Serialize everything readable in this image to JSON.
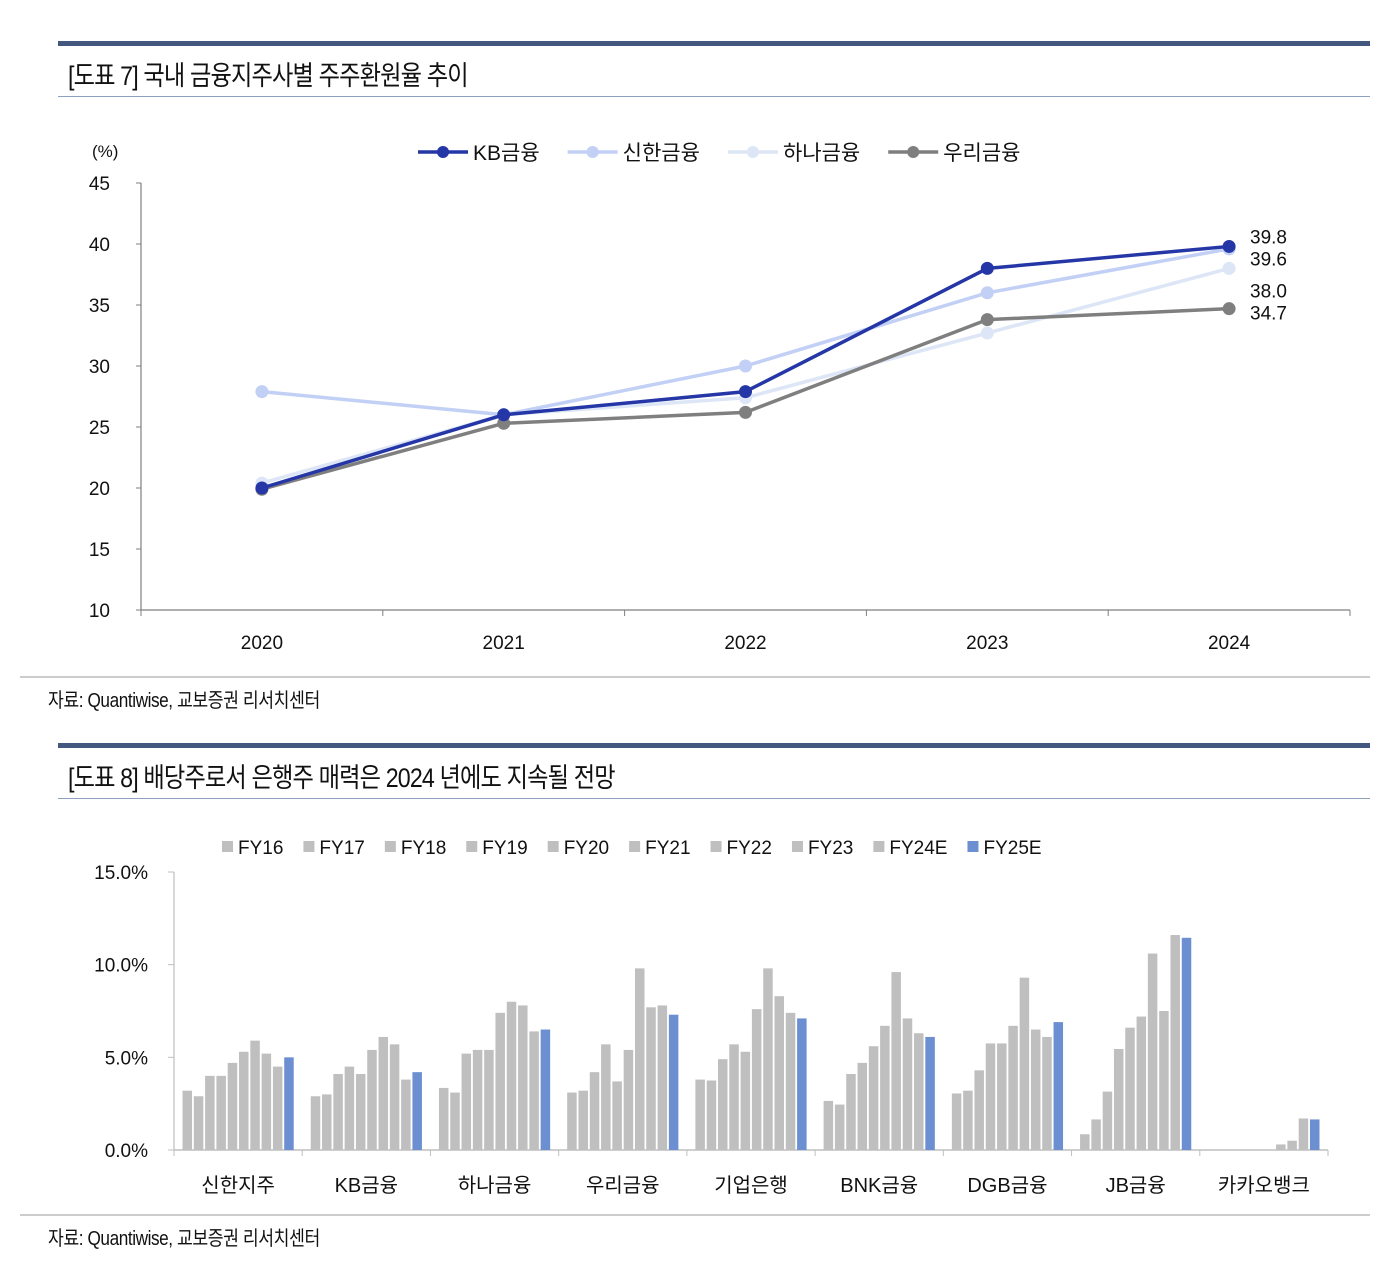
{
  "sections": [
    {
      "title": "[도표 7] 국내 금융지주사별 주주환원율 추이",
      "source": "자료: Quantiwise, 교보증권 리서치센터"
    },
    {
      "title": "[도표 8] 배당주로서 은행주 매력은 2024 년에도 지속될 전망",
      "source": "자료: Quantiwise, 교보증권 리서치센터"
    }
  ],
  "colors": {
    "section_bar": "#44587f",
    "kb": "#2536a6",
    "shinhan": "#c2d0f5",
    "hana": "#dde6f6",
    "woori": "#7f7f7f",
    "bar_gray": "#bfbfbf",
    "bar_blue": "#6b8fd0"
  },
  "chart_data": [
    {
      "type": "line",
      "title": "[도표 7] 국내 금융지주사별 주주환원율 추이",
      "ylabel": "(%)",
      "xlabel": "",
      "ylim": [
        10,
        45
      ],
      "yticks": [
        "10",
        "15",
        "20",
        "25",
        "30",
        "35",
        "40",
        "45"
      ],
      "categories": [
        "2020",
        "2021",
        "2022",
        "2023",
        "2024"
      ],
      "legend_position": "top",
      "grid": false,
      "series": [
        {
          "name": "KB금융",
          "key": "kb",
          "values": [
            20.0,
            26.0,
            27.9,
            38.0,
            39.8
          ],
          "end_label": "39.8"
        },
        {
          "name": "신한금융",
          "key": "shinhan",
          "values": [
            27.9,
            26.0,
            30.0,
            36.0,
            39.6
          ],
          "end_label": "39.6"
        },
        {
          "name": "하나금융",
          "key": "hana",
          "values": [
            20.4,
            26.0,
            27.4,
            32.7,
            38.0
          ],
          "end_label": "38.0"
        },
        {
          "name": "우리금융",
          "key": "woori",
          "values": [
            19.9,
            25.3,
            26.2,
            33.8,
            34.7
          ],
          "end_label": "34.7"
        }
      ]
    },
    {
      "type": "bar",
      "title": "[도표 8] 배당주로서 은행주 매력은 2024 년에도 지속될 전망",
      "xlabel": "",
      "ylabel": "",
      "ylim": [
        0,
        15
      ],
      "yticks": [
        "0.0%",
        "5.0%",
        "10.0%",
        "15.0%"
      ],
      "legend_position": "top",
      "grid": false,
      "categories": [
        "신한지주",
        "KB금융",
        "하나금융",
        "우리금융",
        "기업은행",
        "BNK금융",
        "DGB금융",
        "JB금융",
        "카카오뱅크"
      ],
      "series": [
        {
          "name": "FY16",
          "values": [
            3.2,
            2.9,
            3.35,
            3.1,
            3.8,
            2.65,
            3.05,
            0.85,
            0
          ]
        },
        {
          "name": "FY17",
          "values": [
            2.9,
            3.0,
            3.1,
            3.2,
            3.75,
            2.45,
            3.2,
            1.65,
            0
          ]
        },
        {
          "name": "FY18",
          "values": [
            4.0,
            4.1,
            5.2,
            4.2,
            4.9,
            4.1,
            4.3,
            3.15,
            0
          ]
        },
        {
          "name": "FY19",
          "values": [
            4.0,
            4.5,
            5.4,
            5.7,
            5.7,
            4.7,
            5.75,
            5.45,
            0
          ]
        },
        {
          "name": "FY20",
          "values": [
            4.7,
            4.1,
            5.4,
            3.7,
            5.3,
            5.6,
            5.75,
            6.6,
            0
          ]
        },
        {
          "name": "FY21",
          "values": [
            5.3,
            5.4,
            7.4,
            5.4,
            7.6,
            6.7,
            6.7,
            7.2,
            0
          ]
        },
        {
          "name": "FY22",
          "values": [
            5.9,
            6.1,
            8.0,
            9.8,
            9.8,
            9.6,
            9.3,
            10.6,
            0.3
          ]
        },
        {
          "name": "FY23",
          "values": [
            5.2,
            5.7,
            7.8,
            7.7,
            8.3,
            7.1,
            6.5,
            7.5,
            0.5
          ]
        },
        {
          "name": "FY24E",
          "values": [
            4.5,
            3.8,
            6.4,
            7.8,
            7.4,
            6.3,
            6.1,
            11.6,
            1.7
          ]
        },
        {
          "name": "FY25E",
          "values": [
            5.0,
            4.2,
            6.5,
            7.3,
            7.1,
            6.1,
            6.9,
            11.45,
            1.65
          ]
        }
      ]
    }
  ]
}
